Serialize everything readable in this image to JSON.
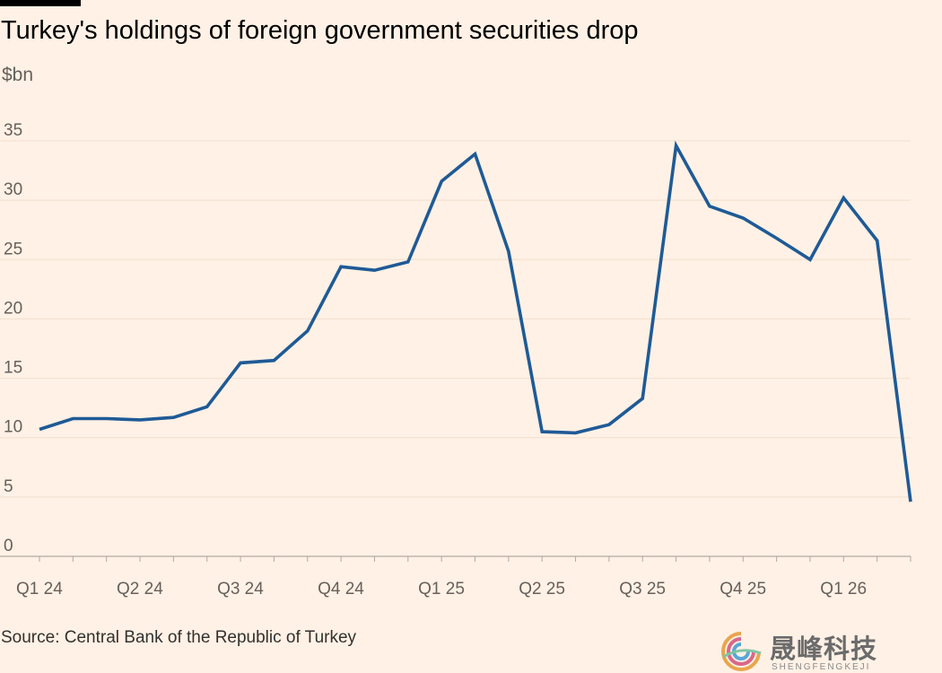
{
  "chart_data": {
    "type": "line",
    "title": "Turkey's holdings of foreign government securities drop",
    "ylabel": "$bn",
    "xlabel": "",
    "source": "Source: Central Bank of the Republic of Turkey",
    "ylim": [
      0,
      35
    ],
    "yticks": [
      0,
      5,
      10,
      15,
      20,
      25,
      30,
      35
    ],
    "xtick_labels": [
      {
        "index": 0,
        "label": "Q1 24"
      },
      {
        "index": 3,
        "label": "Q2 24"
      },
      {
        "index": 6,
        "label": "Q3 24"
      },
      {
        "index": 9,
        "label": "Q4 24"
      },
      {
        "index": 12,
        "label": "Q1 25"
      },
      {
        "index": 15,
        "label": "Q2 25"
      },
      {
        "index": 18,
        "label": "Q3 25"
      },
      {
        "index": 21,
        "label": "Q4 25"
      },
      {
        "index": 24,
        "label": "Q1 26"
      }
    ],
    "grid": true,
    "series": [
      {
        "name": "Holdings of foreign government securities",
        "color": "#1f5a96",
        "values": [
          10.7,
          11.6,
          11.6,
          11.5,
          11.7,
          12.6,
          16.3,
          16.5,
          19.0,
          24.4,
          24.1,
          24.8,
          31.6,
          33.9,
          25.7,
          10.5,
          10.4,
          11.1,
          13.3,
          34.6,
          29.5,
          28.5,
          26.8,
          25.0,
          30.2,
          26.6,
          4.6
        ]
      }
    ]
  },
  "watermark": {
    "text": "晟峰科技",
    "subtext": "SHENGFENGKEJI"
  }
}
